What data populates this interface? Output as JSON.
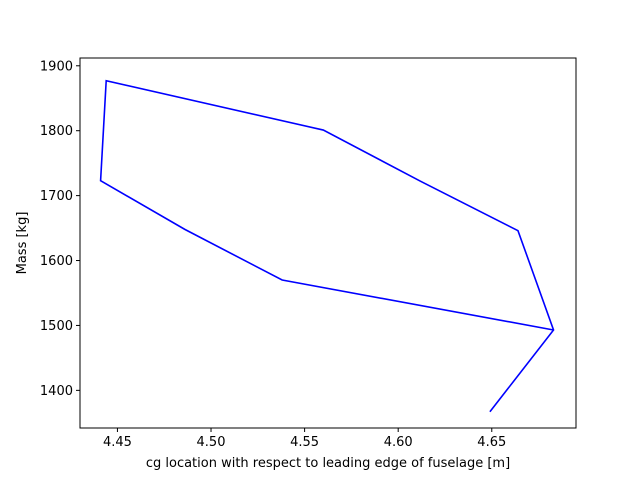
{
  "chart_data": {
    "type": "line",
    "title": "",
    "xlabel": "cg location with respect to leading edge of fuselage [m]",
    "ylabel": "Mass [kg]",
    "xlim": [
      4.43,
      4.695
    ],
    "ylim": [
      1342,
      1912
    ],
    "x_ticks": [
      4.45,
      4.5,
      4.55,
      4.6,
      4.65
    ],
    "x_tick_labels": [
      "4.45",
      "4.50",
      "4.55",
      "4.60",
      "4.65"
    ],
    "y_ticks": [
      1400,
      1500,
      1600,
      1700,
      1800,
      1900
    ],
    "y_tick_labels": [
      "1400",
      "1500",
      "1600",
      "1700",
      "1800",
      "1900"
    ],
    "grid": false,
    "series": [
      {
        "color": "#0000ff",
        "x": [
          4.649,
          4.683,
          4.664,
          4.612,
          4.56,
          4.444,
          4.441,
          4.486,
          4.538,
          4.683
        ],
        "y": [
          1367,
          1493,
          1646,
          1722,
          1801,
          1877,
          1723,
          1648,
          1570,
          1493
        ]
      }
    ]
  }
}
